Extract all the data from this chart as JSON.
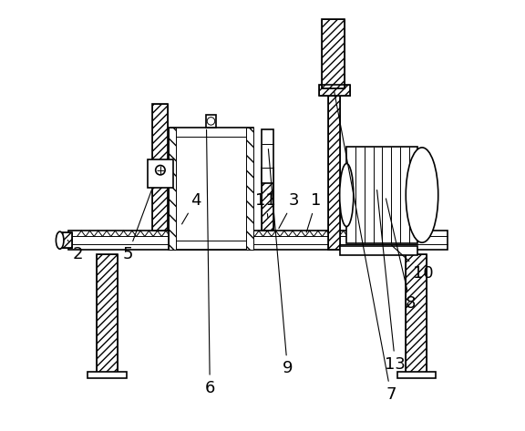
{
  "background_color": "#ffffff",
  "line_color": "#000000",
  "line_width": 1.2,
  "thin_line": 0.7,
  "label_fontsize": 13
}
